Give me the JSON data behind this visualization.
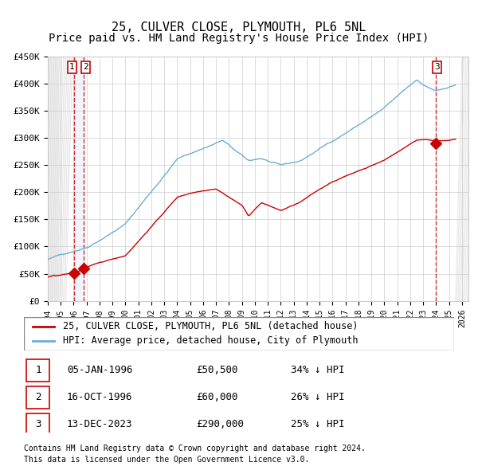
{
  "title": "25, CULVER CLOSE, PLYMOUTH, PL6 5NL",
  "subtitle": "Price paid vs. HM Land Registry's House Price Index (HPI)",
  "xlabel": "",
  "ylabel": "",
  "ylim": [
    0,
    450000
  ],
  "xlim_start": 1994.0,
  "xlim_end": 2026.5,
  "yticks": [
    0,
    50000,
    100000,
    150000,
    200000,
    250000,
    300000,
    350000,
    400000,
    450000
  ],
  "ytick_labels": [
    "£0",
    "£50K",
    "£100K",
    "£150K",
    "£200K",
    "£250K",
    "£300K",
    "£350K",
    "£400K",
    "£450K"
  ],
  "xticks": [
    1994,
    1995,
    1996,
    1997,
    1998,
    1999,
    2000,
    2001,
    2002,
    2003,
    2004,
    2005,
    2006,
    2007,
    2008,
    2009,
    2010,
    2011,
    2012,
    2013,
    2014,
    2015,
    2016,
    2017,
    2018,
    2019,
    2020,
    2021,
    2022,
    2023,
    2024,
    2025,
    2026
  ],
  "hpi_color": "#6baed6",
  "price_color": "#cc0000",
  "marker_color": "#cc0000",
  "vline_color": "#cc0000",
  "vband_color": "#cce0f5",
  "grid_color": "#cccccc",
  "background_color": "#ffffff",
  "sale1_date": 1996.019,
  "sale1_price": 50500,
  "sale2_date": 1996.79,
  "sale2_price": 60000,
  "sale3_date": 2023.95,
  "sale3_price": 290000,
  "legend_label_red": "25, CULVER CLOSE, PLYMOUTH, PL6 5NL (detached house)",
  "legend_label_blue": "HPI: Average price, detached house, City of Plymouth",
  "table_entries": [
    {
      "num": "1",
      "date": "05-JAN-1996",
      "price": "£50,500",
      "hpi": "34% ↓ HPI"
    },
    {
      "num": "2",
      "date": "16-OCT-1996",
      "price": "£60,000",
      "hpi": "26% ↓ HPI"
    },
    {
      "num": "3",
      "date": "13-DEC-2023",
      "price": "£290,000",
      "hpi": "25% ↓ HPI"
    }
  ],
  "footnote1": "Contains HM Land Registry data © Crown copyright and database right 2024.",
  "footnote2": "This data is licensed under the Open Government Licence v3.0.",
  "title_fontsize": 11,
  "subtitle_fontsize": 10,
  "tick_fontsize": 8,
  "legend_fontsize": 9
}
